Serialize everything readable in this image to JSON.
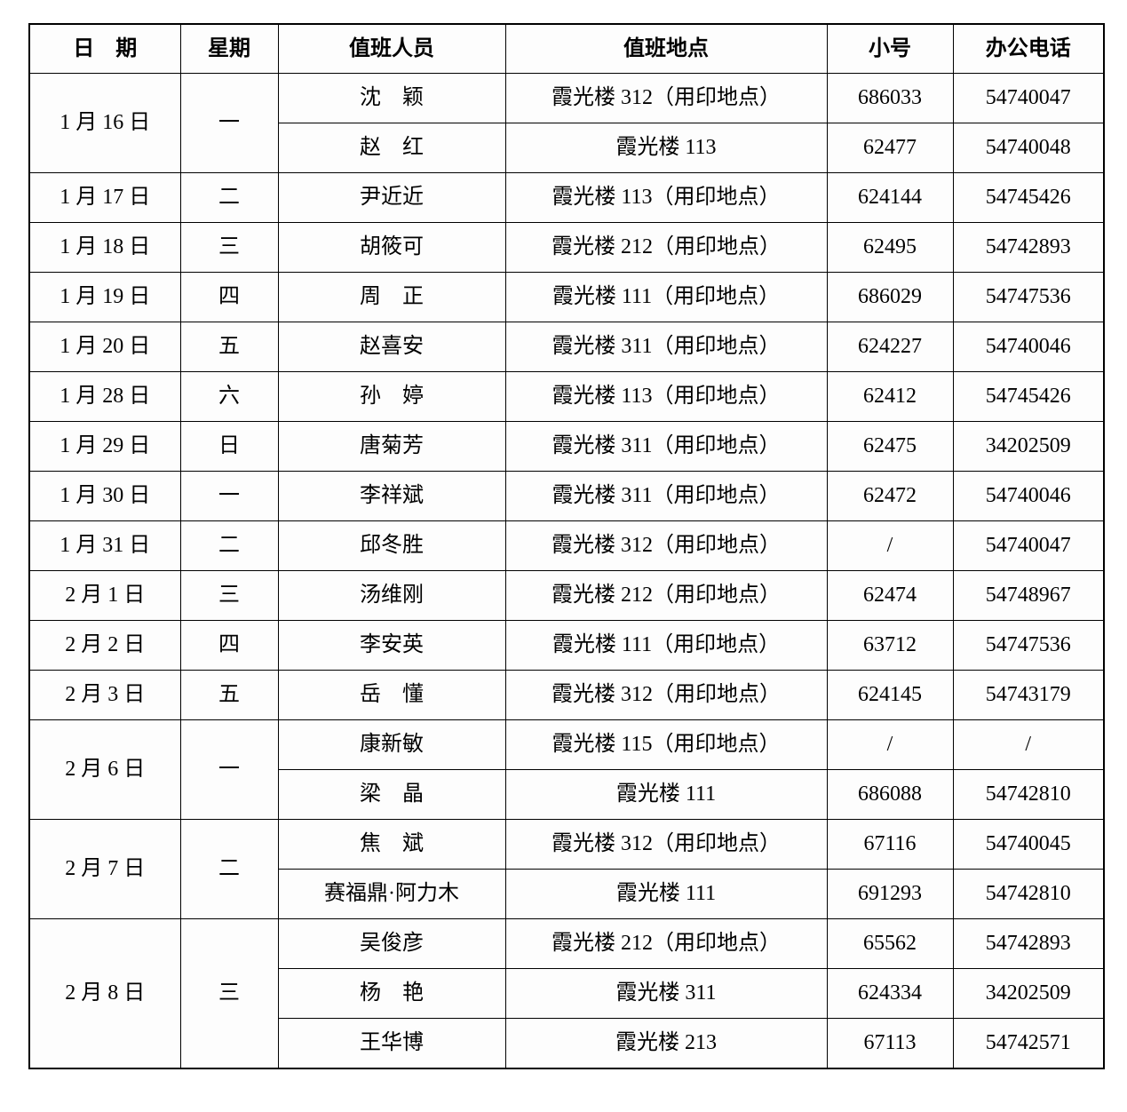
{
  "page": {
    "background_color": "#ffffff",
    "text_color": "#000000",
    "grid_color": "#000000"
  },
  "table": {
    "columns": [
      {
        "key": "date",
        "label": "日　期"
      },
      {
        "key": "weekday",
        "label": "星期"
      },
      {
        "key": "person",
        "label": "值班人员"
      },
      {
        "key": "location",
        "label": "值班地点"
      },
      {
        "key": "ext",
        "label": "小号"
      },
      {
        "key": "phone",
        "label": "办公电话"
      }
    ],
    "blocks": [
      {
        "date": "1 月 16 日",
        "weekday": "一",
        "entries": [
          {
            "person": "沈　颖",
            "location": "霞光楼 312（用印地点）",
            "ext": "686033",
            "phone": "54740047"
          },
          {
            "person": "赵　红",
            "location": "霞光楼 113",
            "ext": "62477",
            "phone": "54740048"
          }
        ]
      },
      {
        "date": "1 月 17 日",
        "weekday": "二",
        "entries": [
          {
            "person": "尹近近",
            "location": "霞光楼 113（用印地点）",
            "ext": "624144",
            "phone": "54745426"
          }
        ]
      },
      {
        "date": "1 月 18 日",
        "weekday": "三",
        "entries": [
          {
            "person": "胡筱可",
            "location": "霞光楼 212（用印地点）",
            "ext": "62495",
            "phone": "54742893"
          }
        ]
      },
      {
        "date": "1 月 19 日",
        "weekday": "四",
        "entries": [
          {
            "person": "周　正",
            "location": "霞光楼 111（用印地点）",
            "ext": "686029",
            "phone": "54747536"
          }
        ]
      },
      {
        "date": "1 月 20 日",
        "weekday": "五",
        "entries": [
          {
            "person": "赵喜安",
            "location": "霞光楼 311（用印地点）",
            "ext": "624227",
            "phone": "54740046"
          }
        ]
      },
      {
        "date": "1 月 28 日",
        "weekday": "六",
        "entries": [
          {
            "person": "孙　婷",
            "location": "霞光楼 113（用印地点）",
            "ext": "62412",
            "phone": "54745426"
          }
        ]
      },
      {
        "date": "1 月 29 日",
        "weekday": "日",
        "entries": [
          {
            "person": "唐菊芳",
            "location": "霞光楼 311（用印地点）",
            "ext": "62475",
            "phone": "34202509"
          }
        ]
      },
      {
        "date": "1 月 30 日",
        "weekday": "一",
        "entries": [
          {
            "person": "李祥斌",
            "location": "霞光楼 311（用印地点）",
            "ext": "62472",
            "phone": "54740046"
          }
        ]
      },
      {
        "date": "1 月 31 日",
        "weekday": "二",
        "entries": [
          {
            "person": "邱冬胜",
            "location": "霞光楼 312（用印地点）",
            "ext": "/",
            "phone": "54740047"
          }
        ]
      },
      {
        "date": "2 月 1 日",
        "weekday": "三",
        "entries": [
          {
            "person": "汤维刚",
            "location": "霞光楼 212（用印地点）",
            "ext": "62474",
            "phone": "54748967"
          }
        ]
      },
      {
        "date": "2 月 2 日",
        "weekday": "四",
        "entries": [
          {
            "person": "李安英",
            "location": "霞光楼 111（用印地点）",
            "ext": "63712",
            "phone": "54747536"
          }
        ]
      },
      {
        "date": "2 月 3 日",
        "weekday": "五",
        "entries": [
          {
            "person": "岳　懂",
            "location": "霞光楼 312（用印地点）",
            "ext": "624145",
            "phone": "54743179"
          }
        ]
      },
      {
        "date": "2 月 6 日",
        "weekday": "一",
        "entries": [
          {
            "person": "康新敏",
            "location": "霞光楼 115（用印地点）",
            "ext": "/",
            "phone": "/"
          },
          {
            "person": "梁　晶",
            "location": "霞光楼 111",
            "ext": "686088",
            "phone": "54742810"
          }
        ]
      },
      {
        "date": "2 月 7 日",
        "weekday": "二",
        "entries": [
          {
            "person": "焦　斌",
            "location": "霞光楼 312（用印地点）",
            "ext": "67116",
            "phone": "54740045"
          },
          {
            "person": "赛福鼎·阿力木",
            "location": "霞光楼 111",
            "ext": "691293",
            "phone": "54742810"
          }
        ]
      },
      {
        "date": "2 月 8 日",
        "weekday": "三",
        "entries": [
          {
            "person": "吴俊彦",
            "location": "霞光楼 212（用印地点）",
            "ext": "65562",
            "phone": "54742893"
          },
          {
            "person": "杨　艳",
            "location": "霞光楼 311",
            "ext": "624334",
            "phone": "34202509"
          },
          {
            "person": "王华博",
            "location": "霞光楼 213",
            "ext": "67113",
            "phone": "54742571"
          }
        ]
      }
    ]
  }
}
